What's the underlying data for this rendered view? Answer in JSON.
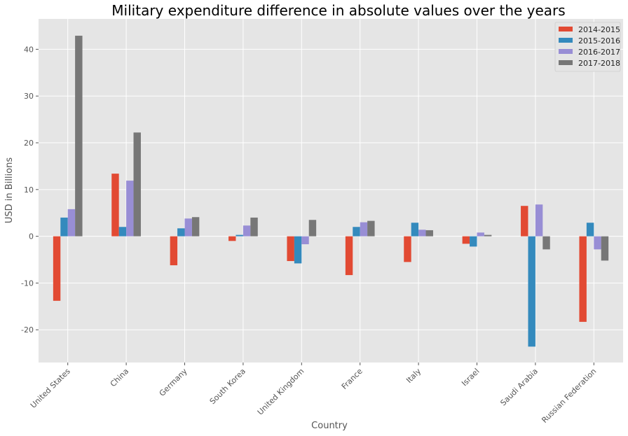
{
  "chart_data": {
    "type": "bar",
    "title": "Military expenditure difference in absolute values over the years",
    "xlabel": "Country",
    "ylabel": "USD in Billions",
    "ylim": [
      -27,
      46.5
    ],
    "yticks": [
      -20,
      -10,
      0,
      10,
      20,
      30,
      40
    ],
    "grid": true,
    "legend_position": "top-right",
    "categories": [
      "United States",
      "China",
      "Germany",
      "South Korea",
      "United Kingdom",
      "France",
      "Italy",
      "Israel",
      "Saudi Arabia",
      "Russian Federation"
    ],
    "series": [
      {
        "name": "2014-2015",
        "color": "#e24a33",
        "values": [
          -13.8,
          13.4,
          -6.2,
          -1.0,
          -5.3,
          -8.3,
          -5.5,
          -1.6,
          6.5,
          -18.3
        ]
      },
      {
        "name": "2015-2016",
        "color": "#348abd",
        "values": [
          4.0,
          2.0,
          1.7,
          0.3,
          -5.8,
          2.0,
          2.9,
          -2.2,
          -23.6,
          2.9
        ]
      },
      {
        "name": "2016-2017",
        "color": "#988ed5",
        "values": [
          5.8,
          11.9,
          3.8,
          2.3,
          -1.7,
          3.0,
          1.4,
          0.8,
          6.8,
          -2.8
        ]
      },
      {
        "name": "2017-2018",
        "color": "#777777",
        "values": [
          42.9,
          22.2,
          4.1,
          4.0,
          3.5,
          3.3,
          1.3,
          0.3,
          -2.8,
          -5.2
        ]
      }
    ]
  }
}
